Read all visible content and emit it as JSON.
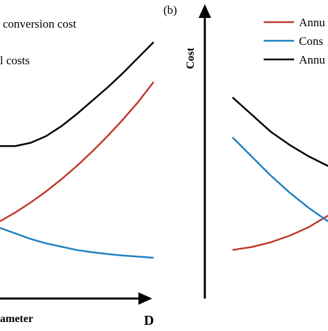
{
  "chart_data": [
    {
      "type": "line",
      "panel_label": "",
      "title": "",
      "xlabel": "ameter",
      "xlabel_end": "D",
      "ylabel": "",
      "legend": [
        "conversion cost",
        "l costs"
      ],
      "xlim": [
        0,
        10
      ],
      "ylim": [
        0,
        10
      ],
      "series": [
        {
          "color": "#000000",
          "x": [
            0,
            1,
            2,
            3,
            4,
            5,
            6,
            7,
            8,
            9,
            10
          ],
          "y": [
            5.3,
            5.3,
            5.45,
            5.75,
            6.2,
            6.75,
            7.35,
            7.95,
            8.6,
            9.3,
            10.0
          ]
        },
        {
          "color": "#c0392b",
          "x": [
            0,
            1,
            2,
            3,
            4,
            5,
            6,
            7,
            8,
            9,
            10
          ],
          "y": [
            1.9,
            2.3,
            2.75,
            3.25,
            3.8,
            4.4,
            5.05,
            5.75,
            6.5,
            7.3,
            8.2
          ]
        },
        {
          "color": "#1f7fc1",
          "x": [
            0,
            1,
            2,
            3,
            4,
            5,
            6,
            7,
            8,
            9,
            10
          ],
          "y": [
            1.6,
            1.35,
            1.1,
            0.9,
            0.75,
            0.6,
            0.5,
            0.42,
            0.35,
            0.3,
            0.25
          ]
        }
      ]
    },
    {
      "type": "line",
      "panel_label": "(b)",
      "title": "",
      "xlabel": "",
      "ylabel": "Cost",
      "legend": [
        "Annu",
        "Cons",
        "Annu"
      ],
      "xlim": [
        0,
        10
      ],
      "ylim": [
        0,
        10
      ],
      "series": [
        {
          "name": "Annu",
          "color": "#c0392b",
          "x": [
            0,
            2,
            4,
            6,
            8,
            10
          ],
          "y": [
            0.7,
            0.85,
            1.1,
            1.45,
            1.9,
            2.5
          ]
        },
        {
          "name": "Cons",
          "color": "#1f7fc1",
          "x": [
            0,
            2,
            4,
            6,
            8,
            10
          ],
          "y": [
            6.6,
            5.6,
            4.6,
            3.7,
            2.9,
            2.2
          ]
        },
        {
          "name": "Annu",
          "color": "#000000",
          "x": [
            0,
            2,
            4,
            6,
            8,
            10
          ],
          "y": [
            8.7,
            7.8,
            6.9,
            6.2,
            5.6,
            5.1
          ]
        }
      ]
    }
  ]
}
